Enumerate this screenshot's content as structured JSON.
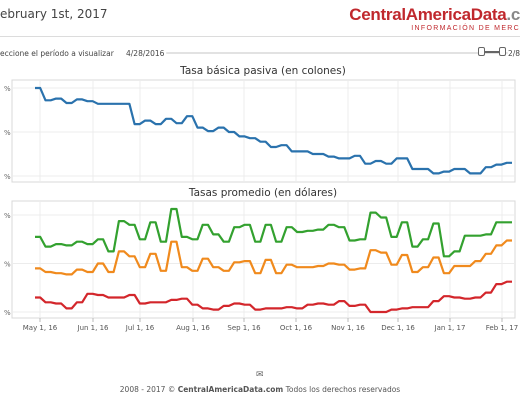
{
  "header": {
    "date": "ebruary 1st, 2017",
    "logo_main": "CentralAmericaData",
    "logo_dot": ".c",
    "logo_sub": "INFORMACIÓN DE MERC"
  },
  "period": {
    "label": "eccione el período a visualizar",
    "start": "4/28/2016",
    "end": "2/8"
  },
  "colors": {
    "blue": "#2a72ad",
    "green": "#33a12f",
    "orange": "#f08a1d",
    "red": "#d3262b"
  },
  "x_ticks": [
    "May 1, 16",
    "Jun 1, 16",
    "Jul 1, 16",
    "Aug 1, 16",
    "Sep 1, 16",
    "Oct 1, 16",
    "Nov 1, 16",
    "Dec 1, 16",
    "Jan 1, 17",
    "Feb 1, 17"
  ],
  "chart_data": [
    {
      "type": "line",
      "title": "Tasa básica pasiva (en colones)",
      "y_tick_labels": [
        "%",
        "%",
        "%"
      ],
      "series": [
        {
          "color": "blue",
          "values": [
            1.0,
            1.0,
            0.86,
            0.86,
            0.88,
            0.88,
            0.83,
            0.83,
            0.87,
            0.87,
            0.85,
            0.85,
            0.82,
            0.82,
            0.82,
            0.82,
            0.82,
            0.82,
            0.82,
            0.59,
            0.59,
            0.63,
            0.63,
            0.59,
            0.59,
            0.65,
            0.65,
            0.6,
            0.6,
            0.68,
            0.68,
            0.55,
            0.55,
            0.51,
            0.51,
            0.55,
            0.55,
            0.5,
            0.5,
            0.45,
            0.45,
            0.43,
            0.43,
            0.39,
            0.39,
            0.33,
            0.33,
            0.35,
            0.35,
            0.28,
            0.28,
            0.28,
            0.28,
            0.25,
            0.25,
            0.25,
            0.22,
            0.22,
            0.2,
            0.2,
            0.2,
            0.23,
            0.23,
            0.14,
            0.14,
            0.17,
            0.17,
            0.14,
            0.14,
            0.2,
            0.2,
            0.2,
            0.08,
            0.08,
            0.08,
            0.08,
            0.03,
            0.03,
            0.05,
            0.05,
            0.08,
            0.08,
            0.08,
            0.03,
            0.03,
            0.03,
            0.1,
            0.1,
            0.13,
            0.13,
            0.15,
            0.15
          ]
        }
      ]
    },
    {
      "type": "line",
      "title": "Tasas promedio (en dólares)",
      "y_tick_labels": [
        "%",
        "%",
        "%"
      ],
      "series": [
        {
          "color": "green",
          "values": [
            0.62,
            0.62,
            0.54,
            0.54,
            0.56,
            0.56,
            0.55,
            0.55,
            0.58,
            0.58,
            0.56,
            0.56,
            0.6,
            0.6,
            0.5,
            0.5,
            0.75,
            0.75,
            0.72,
            0.72,
            0.6,
            0.6,
            0.74,
            0.74,
            0.58,
            0.58,
            0.85,
            0.85,
            0.62,
            0.62,
            0.6,
            0.6,
            0.72,
            0.72,
            0.64,
            0.64,
            0.58,
            0.58,
            0.7,
            0.7,
            0.72,
            0.72,
            0.58,
            0.58,
            0.72,
            0.72,
            0.58,
            0.58,
            0.7,
            0.7,
            0.66,
            0.66,
            0.67,
            0.67,
            0.68,
            0.68,
            0.72,
            0.72,
            0.7,
            0.7,
            0.59,
            0.59,
            0.6,
            0.6,
            0.82,
            0.82,
            0.78,
            0.78,
            0.62,
            0.62,
            0.74,
            0.74,
            0.54,
            0.54,
            0.6,
            0.6,
            0.73,
            0.73,
            0.46,
            0.46,
            0.5,
            0.5,
            0.63,
            0.63,
            0.63,
            0.63,
            0.64,
            0.64,
            0.74,
            0.74,
            0.74,
            0.74
          ]
        },
        {
          "color": "orange",
          "values": [
            0.36,
            0.36,
            0.33,
            0.33,
            0.32,
            0.32,
            0.31,
            0.31,
            0.35,
            0.35,
            0.33,
            0.33,
            0.4,
            0.4,
            0.33,
            0.33,
            0.5,
            0.5,
            0.46,
            0.46,
            0.37,
            0.37,
            0.48,
            0.48,
            0.34,
            0.34,
            0.58,
            0.58,
            0.37,
            0.37,
            0.34,
            0.34,
            0.44,
            0.44,
            0.37,
            0.37,
            0.34,
            0.34,
            0.41,
            0.41,
            0.42,
            0.42,
            0.32,
            0.32,
            0.43,
            0.43,
            0.32,
            0.32,
            0.39,
            0.39,
            0.37,
            0.37,
            0.37,
            0.37,
            0.38,
            0.38,
            0.4,
            0.4,
            0.39,
            0.39,
            0.35,
            0.35,
            0.36,
            0.36,
            0.51,
            0.51,
            0.49,
            0.49,
            0.39,
            0.39,
            0.47,
            0.47,
            0.33,
            0.33,
            0.37,
            0.37,
            0.45,
            0.45,
            0.32,
            0.32,
            0.38,
            0.38,
            0.38,
            0.38,
            0.42,
            0.42,
            0.48,
            0.48,
            0.55,
            0.55,
            0.59,
            0.59
          ]
        },
        {
          "color": "red",
          "values": [
            0.12,
            0.12,
            0.08,
            0.08,
            0.07,
            0.07,
            0.03,
            0.03,
            0.08,
            0.08,
            0.15,
            0.15,
            0.14,
            0.14,
            0.12,
            0.12,
            0.12,
            0.12,
            0.14,
            0.14,
            0.07,
            0.07,
            0.08,
            0.08,
            0.08,
            0.08,
            0.1,
            0.1,
            0.11,
            0.11,
            0.06,
            0.06,
            0.03,
            0.03,
            0.02,
            0.02,
            0.05,
            0.05,
            0.07,
            0.07,
            0.06,
            0.06,
            0.02,
            0.02,
            0.03,
            0.03,
            0.03,
            0.03,
            0.04,
            0.04,
            0.03,
            0.03,
            0.06,
            0.06,
            0.07,
            0.07,
            0.06,
            0.06,
            0.09,
            0.09,
            0.05,
            0.05,
            0.06,
            0.06,
            0.0,
            0.0,
            0.0,
            0.0,
            0.02,
            0.02,
            0.03,
            0.03,
            0.04,
            0.04,
            0.04,
            0.04,
            0.09,
            0.09,
            0.13,
            0.13,
            0.12,
            0.12,
            0.11,
            0.11,
            0.12,
            0.12,
            0.16,
            0.16,
            0.23,
            0.23,
            0.25,
            0.25
          ]
        }
      ]
    }
  ],
  "footer": {
    "years": "2008 - 2017 © ",
    "brand": "CentralAmericaData.com",
    "rights": " Todos los derechos reservados"
  }
}
